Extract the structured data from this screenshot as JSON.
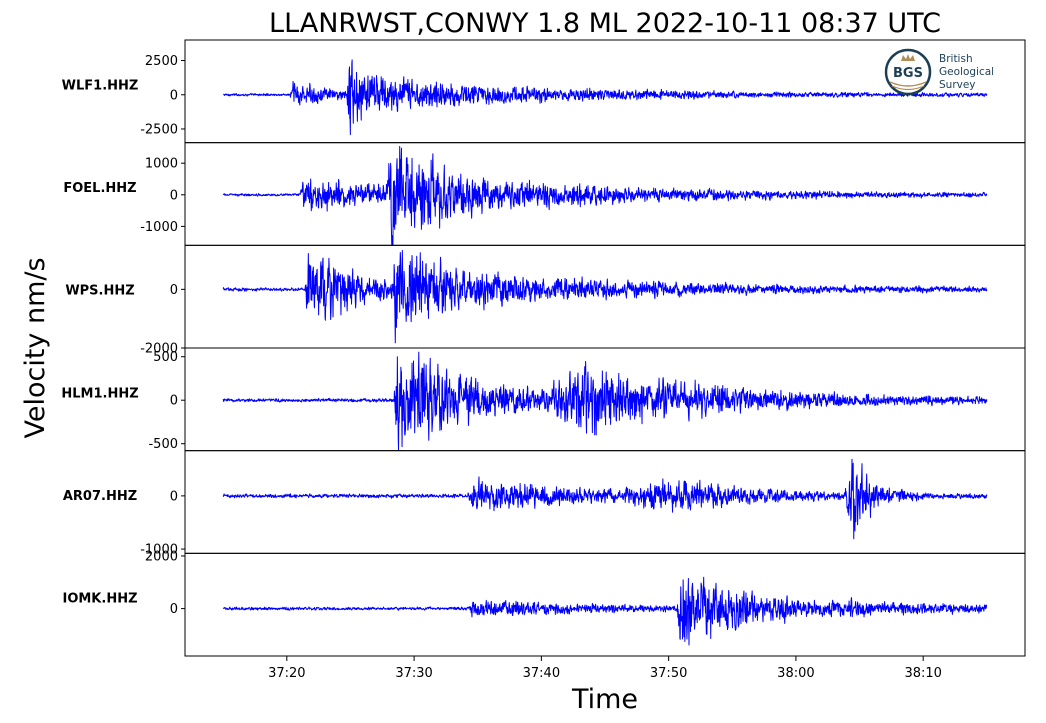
{
  "chart_data": {
    "type": "line",
    "title": "LLANRWST,CONWY 1.8 ML   2022-10-11 08:37 UTC",
    "ylabel": "Velocity nm/s",
    "xlabel": "Time",
    "x_ticks": [
      "37:20",
      "37:30",
      "37:40",
      "37:50",
      "38:00",
      "38:10"
    ],
    "x_tick_seconds": [
      20,
      30,
      40,
      50,
      60,
      70
    ],
    "xlim_seconds": [
      12,
      78
    ],
    "data_span_seconds": [
      15,
      75
    ],
    "line_color": "#0000ff",
    "grid": false,
    "series": [
      {
        "name": "WLF1.HHZ",
        "yticks": [
          2500,
          0,
          -2500
        ],
        "ytick_labels": [
          "2500",
          "0",
          "-2500"
        ],
        "ylim": [
          -3500,
          4000
        ],
        "p_arrival_s": 20.2,
        "s_arrival_s": 24.8,
        "noise": 60,
        "events": [
          {
            "t": 20.2,
            "amp": 700,
            "decay": 3.0,
            "rise": 0.25
          },
          {
            "t": 24.7,
            "amp": 3400,
            "decay": 0.9,
            "rise": 0.12
          },
          {
            "t": 25.6,
            "amp": 900,
            "decay": 14,
            "rise": 1.5
          }
        ]
      },
      {
        "name": "FOEL.HHZ",
        "yticks": [
          1000,
          0,
          -1000
        ],
        "ytick_labels": [
          "1000",
          "0",
          "-1000"
        ],
        "ylim": [
          -1600,
          1650
        ],
        "p_arrival_s": 21.0,
        "s_arrival_s": 28.0,
        "noise": 25,
        "events": [
          {
            "t": 21.0,
            "amp": 380,
            "decay": 9,
            "rise": 0.3
          },
          {
            "t": 27.8,
            "amp": 1450,
            "decay": 1.8,
            "rise": 0.25
          },
          {
            "t": 28.8,
            "amp": 420,
            "decay": 16,
            "rise": 1.2
          }
        ]
      },
      {
        "name": "WPS.HHZ",
        "yticks": [
          0,
          -2000
        ],
        "ytick_labels": [
          "0",
          "-2000"
        ],
        "ylim": [
          -2000,
          1500
        ],
        "p_arrival_s": 21.5,
        "s_arrival_s": 28.3,
        "noise": 40,
        "events": [
          {
            "t": 21.4,
            "amp": 850,
            "decay": 5.5,
            "rise": 0.3
          },
          {
            "t": 28.3,
            "amp": 1450,
            "decay": 1.4,
            "rise": 0.2
          },
          {
            "t": 29.5,
            "amp": 500,
            "decay": 15,
            "rise": 1.5
          }
        ]
      },
      {
        "name": "HLM1.HHZ",
        "yticks": [
          500,
          0,
          -500
        ],
        "ytick_labels": [
          "500",
          "0",
          "-500"
        ],
        "ylim": [
          -580,
          600
        ],
        "p_arrival_s": 28.5,
        "s_arrival_s": 39.5,
        "noise": 14,
        "events": [
          {
            "t": 28.4,
            "amp": 460,
            "decay": 2.5,
            "rise": 0.2
          },
          {
            "t": 29.5,
            "amp": 170,
            "decay": 14,
            "rise": 0.5
          },
          {
            "t": 40.5,
            "amp": 280,
            "decay": 10,
            "rise": 2.5
          }
        ]
      },
      {
        "name": "AR07.HHZ",
        "yticks": [
          0,
          -1000
        ],
        "ytick_labels": [
          "0",
          "-1000"
        ],
        "ylim": [
          -1080,
          850
        ],
        "p_arrival_s": 34.2,
        "s_arrival_s": 63.5,
        "noise": 25,
        "events": [
          {
            "t": 34.2,
            "amp": 210,
            "decay": 10,
            "rise": 0.4
          },
          {
            "t": 46.5,
            "amp": 300,
            "decay": 6,
            "rise": 4
          },
          {
            "t": 63.8,
            "amp": 850,
            "decay": 1.4,
            "rise": 0.7
          }
        ]
      },
      {
        "name": "IOMK.HHZ",
        "yticks": [
          2000,
          0
        ],
        "ytick_labels": [
          "2000",
          "0"
        ],
        "ylim": [
          -1800,
          2100
        ],
        "p_arrival_s": 34.3,
        "s_arrival_s": 50.5,
        "noise": 40,
        "events": [
          {
            "t": 34.3,
            "amp": 240,
            "decay": 9,
            "rise": 0.3
          },
          {
            "t": 50.6,
            "amp": 1600,
            "decay": 2.2,
            "rise": 0.5
          },
          {
            "t": 52.0,
            "amp": 380,
            "decay": 14,
            "rise": 1.5
          }
        ]
      }
    ]
  },
  "logo": {
    "initials": "BGS",
    "lines": [
      "British",
      "Geological",
      "Survey"
    ],
    "colors": {
      "dark": "#1c3f55",
      "gold": "#b08d57"
    }
  }
}
